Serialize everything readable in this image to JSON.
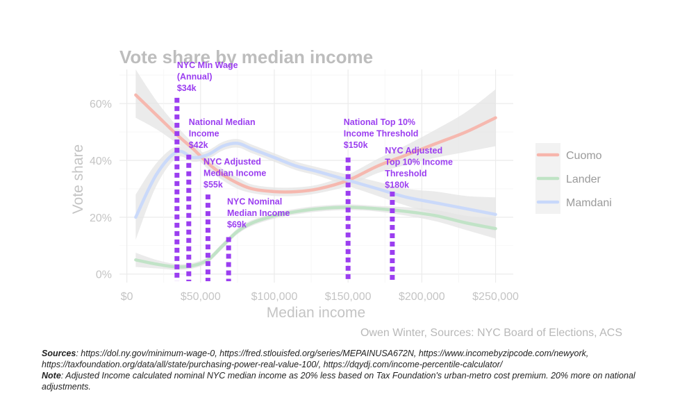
{
  "chart_data": {
    "type": "line",
    "title": "Vote share by median income",
    "xlabel": "Median income",
    "ylabel": "Vote share",
    "xlim": [
      -5000,
      262000
    ],
    "ylim": [
      -3,
      72
    ],
    "x_ticks": [
      0,
      50000,
      100000,
      150000,
      200000,
      250000
    ],
    "x_tick_labels": [
      "$0",
      "$50,000",
      "$100,000",
      "$150,000",
      "$200,000",
      "$250,000"
    ],
    "y_ticks": [
      0,
      20,
      40,
      60
    ],
    "y_tick_labels": [
      "0%",
      "20%",
      "40%",
      "60%"
    ],
    "grid": true,
    "legend_position": "right",
    "credit": "Owen Winter, Sources: NYC Board of Elections, ACS",
    "series": [
      {
        "name": "Cuomo",
        "color": "#f7b5ac",
        "x": [
          6000,
          20000,
          34000,
          45000,
          55000,
          65000,
          75000,
          85000,
          100000,
          115000,
          130000,
          150000,
          170000,
          190000,
          210000,
          230000,
          250000
        ],
        "y": [
          63,
          56,
          49,
          44,
          39,
          35,
          32,
          30,
          29,
          29,
          30,
          33,
          38,
          42,
          46,
          50,
          55
        ],
        "ci": [
          [
            55,
            72
          ],
          [
            51,
            61
          ],
          [
            46,
            52
          ],
          [
            42,
            46
          ],
          [
            37,
            41
          ],
          [
            33,
            37
          ],
          [
            30,
            34
          ],
          [
            28.5,
            31.5
          ],
          [
            27.5,
            30.5
          ],
          [
            27.5,
            30.5
          ],
          [
            28.5,
            31.5
          ],
          [
            31,
            35
          ],
          [
            35.5,
            40.5
          ],
          [
            38.5,
            45.5
          ],
          [
            41,
            51
          ],
          [
            43,
            57
          ],
          [
            45,
            65
          ]
        ]
      },
      {
        "name": "Lander",
        "color": "#bfe3c5",
        "x": [
          6000,
          20000,
          34000,
          45000,
          55000,
          65000,
          75000,
          85000,
          100000,
          115000,
          130000,
          150000,
          170000,
          190000,
          210000,
          230000,
          250000
        ],
        "y": [
          5,
          3.5,
          2.5,
          3,
          5,
          10,
          15,
          18,
          20.5,
          22,
          23,
          23.5,
          23,
          22,
          20.5,
          18,
          16
        ],
        "ci": [
          [
            2.5,
            7.5
          ],
          [
            2,
            5
          ],
          [
            1.5,
            3.5
          ],
          [
            2,
            4
          ],
          [
            4,
            6
          ],
          [
            9,
            11
          ],
          [
            14,
            16
          ],
          [
            17,
            19
          ],
          [
            19.5,
            21.5
          ],
          [
            21,
            23
          ],
          [
            22,
            24
          ],
          [
            22.5,
            24.5
          ],
          [
            22,
            24
          ],
          [
            20.5,
            23.5
          ],
          [
            18.5,
            22.5
          ],
          [
            15.5,
            20.5
          ],
          [
            12.5,
            19.5
          ]
        ]
      },
      {
        "name": "Mamdani",
        "color": "#c8d8fb",
        "x": [
          6000,
          20000,
          34000,
          45000,
          55000,
          65000,
          75000,
          85000,
          100000,
          115000,
          130000,
          150000,
          170000,
          190000,
          210000,
          230000,
          250000
        ],
        "y": [
          20,
          35,
          43,
          41,
          42,
          45,
          46,
          44,
          41,
          38,
          36,
          33,
          30,
          27,
          25,
          23,
          21
        ],
        "ci": [
          [
            12,
            28
          ],
          [
            31,
            39
          ],
          [
            41,
            45
          ],
          [
            39.5,
            42.5
          ],
          [
            40.5,
            43.5
          ],
          [
            43.5,
            46.5
          ],
          [
            44.5,
            47.5
          ],
          [
            42.5,
            45.5
          ],
          [
            39.5,
            42.5
          ],
          [
            36.5,
            39.5
          ],
          [
            34.5,
            37.5
          ],
          [
            31,
            35
          ],
          [
            27.5,
            32.5
          ],
          [
            24,
            30
          ],
          [
            21,
            29
          ],
          [
            18.5,
            27.5
          ],
          [
            15,
            27
          ]
        ]
      }
    ],
    "annotations": [
      {
        "x": 34000,
        "lines": [
          "NYC Min Wage",
          "(Annual)",
          "$34k"
        ],
        "label_x": 34000,
        "label_y": 72.5,
        "line_top": 62
      },
      {
        "x": 42000,
        "lines": [
          "National Median",
          "Income",
          "$42k"
        ],
        "label_x": 42000,
        "label_y": 52.5,
        "line_top": 42
      },
      {
        "x": 55000,
        "lines": [
          "NYC Adjusted",
          "Median Income",
          "$55k"
        ],
        "label_x": 52000,
        "label_y": 38.5,
        "line_top": 28
      },
      {
        "x": 69000,
        "lines": [
          "NYC Nominal",
          "Median Income",
          "$69k"
        ],
        "label_x": 68000,
        "label_y": 24.5,
        "line_top": 13
      },
      {
        "x": 150000,
        "lines": [
          "National Top 10%",
          "Income Threshold",
          "$150k"
        ],
        "label_x": 147000,
        "label_y": 52.5,
        "line_top": 41
      },
      {
        "x": 180000,
        "lines": [
          "NYC Adjusted",
          "Top 10% Income",
          "Threshold",
          "$180k"
        ],
        "label_x": 175000,
        "label_y": 42.5,
        "line_top": 29
      }
    ],
    "annotation_color": "#9b3ef0",
    "ci_color": "#e4e4e4"
  },
  "notes": {
    "sources_label": "Sources",
    "sources_text": ": https://dol.ny.gov/minimum-wage-0, https://fred.stlouisfed.org/series/MEPAINUSA672N, https://www.incomebyzipcode.com/newyork, https://taxfoundation.org/data/all/state/purchasing-power-real-value-100/, https://dqydj.com/income-percentile-calculator/",
    "note_label": "Note",
    "note_text": ": Adjusted Income calculated nominal NYC median income as 20% less based on Tax Foundation's urban-metro cost premium. 20% more on national adjustments."
  }
}
